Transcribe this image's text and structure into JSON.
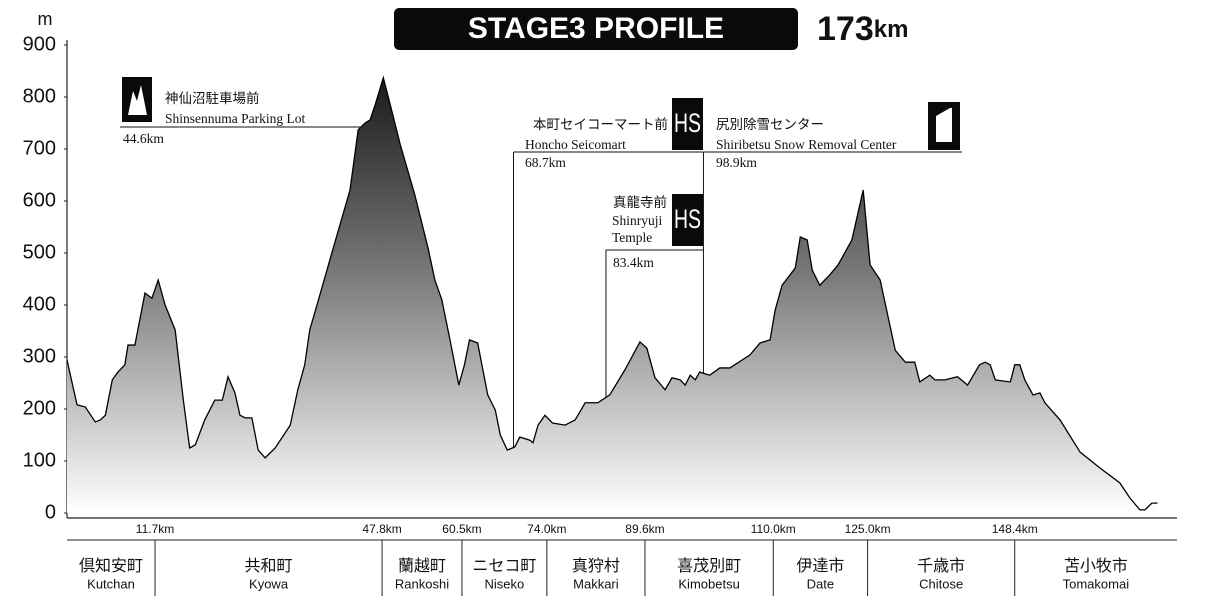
{
  "chart_data": {
    "type": "area",
    "title": "STAGE3 PROFILE",
    "distance_value": "173",
    "distance_unit": "km",
    "y_label": "m",
    "ylim": [
      0,
      900
    ],
    "yticks": [
      0,
      100,
      200,
      300,
      400,
      500,
      600,
      700,
      800,
      900
    ],
    "xlim": [
      -2.3,
      174.2
    ],
    "xticks": [
      {
        "value": 11.7,
        "label": "11.7km"
      },
      {
        "value": 47.8,
        "label": "47.8km"
      },
      {
        "value": 60.5,
        "label": "60.5km"
      },
      {
        "value": 74.0,
        "label": "74.0km"
      },
      {
        "value": 89.6,
        "label": "89.6km"
      },
      {
        "value": 110.0,
        "label": "110.0km"
      },
      {
        "value": 125.0,
        "label": "125.0km"
      },
      {
        "value": 148.4,
        "label": "148.4km"
      }
    ],
    "x": [
      -2.3,
      -0.7,
      0.6,
      2.2,
      3.0,
      3.8,
      4.9,
      5.8,
      6.9,
      7.4,
      8.5,
      10.1,
      11.2,
      12.2,
      13.3,
      14.9,
      16.2,
      17.2,
      18.1,
      19.6,
      21.2,
      22.4,
      23.3,
      24.4,
      25.2,
      26.0,
      27.1,
      28.1,
      29.2,
      30.8,
      33.2,
      34.4,
      35.5,
      36.3,
      37.9,
      39.5,
      41.1,
      42.7,
      44.0,
      45.1,
      45.9,
      46.7,
      48.0,
      49.1,
      50.7,
      53.0,
      55.1,
      56.2,
      57.3,
      58.6,
      60.0,
      60.9,
      61.7,
      63.0,
      64.6,
      65.8,
      66.6,
      67.7,
      68.9,
      69.7,
      71.3,
      71.8,
      72.6,
      73.7,
      74.9,
      76.9,
      78.5,
      80.1,
      82.1,
      84.0,
      86.4,
      88.8,
      89.9,
      91.2,
      92.8,
      93.9,
      95.2,
      96.0,
      96.8,
      97.6,
      98.3,
      99.9,
      101.5,
      103.1,
      106.3,
      107.9,
      109.5,
      110.3,
      111.4,
      113.5,
      114.3,
      115.4,
      116.2,
      117.4,
      119.0,
      120.3,
      122.5,
      124.3,
      125.4,
      127.0,
      129.4,
      131.0,
      132.5,
      133.3,
      134.9,
      135.7,
      137.3,
      139.3,
      140.9,
      142.8,
      143.7,
      144.5,
      145.3,
      147.7,
      148.4,
      149.2,
      150.0,
      151.3,
      152.4,
      153.2,
      155.6,
      158.8,
      161.9,
      165.1,
      166.7,
      168.3,
      169.1,
      170.2,
      171.1
    ],
    "values": [
      294,
      208,
      204,
      175,
      179,
      188,
      256,
      271,
      285,
      323,
      323,
      423,
      413,
      448,
      400,
      352,
      217,
      125,
      131,
      179,
      217,
      217,
      262,
      231,
      188,
      183,
      183,
      121,
      106,
      125,
      169,
      237,
      285,
      352,
      419,
      487,
      554,
      621,
      737,
      750,
      756,
      785,
      837,
      785,
      708,
      612,
      510,
      448,
      410,
      333,
      246,
      285,
      333,
      327,
      227,
      198,
      150,
      121,
      127,
      146,
      140,
      135,
      169,
      188,
      173,
      169,
      179,
      212,
      212,
      227,
      275,
      329,
      317,
      260,
      237,
      260,
      256,
      246,
      265,
      256,
      271,
      265,
      279,
      279,
      304,
      327,
      333,
      390,
      438,
      471,
      531,
      525,
      467,
      438,
      458,
      477,
      525,
      621,
      477,
      448,
      313,
      290,
      290,
      252,
      265,
      256,
      256,
      262,
      246,
      285,
      290,
      285,
      256,
      252,
      285,
      285,
      256,
      227,
      231,
      212,
      179,
      117,
      87,
      58,
      29,
      6,
      6,
      19,
      19
    ],
    "color": "#000000",
    "annotations": [
      {
        "ja": "神仙沼駐車場前",
        "en": "Shinsennuma Parking Lot",
        "km": 44.6,
        "km_label": "44.6km"
      },
      {
        "ja": "本町セイコーマート前",
        "en": "Honcho Seicomart",
        "km": 68.7,
        "km_label": "68.7km",
        "badge": "HS"
      },
      {
        "ja": "真龍寺前",
        "en": "Shinryuji Temple",
        "km": 83.4,
        "km_label": "83.4km",
        "badge": "HS"
      },
      {
        "ja": "尻別除雪センター",
        "en": "Shiribetsu Snow Removal Center",
        "km": 98.9,
        "km_label": "98.9km"
      }
    ],
    "regions": [
      {
        "ja": "倶知安町",
        "en": "Kutchan"
      },
      {
        "ja": "共和町",
        "en": "Kyowa"
      },
      {
        "ja": "蘭越町",
        "en": "Rankoshi"
      },
      {
        "ja": "ニセコ町",
        "en": "Niseko"
      },
      {
        "ja": "真狩村",
        "en": "Makkari"
      },
      {
        "ja": "喜茂別町",
        "en": "Kimobetsu"
      },
      {
        "ja": "伊達市",
        "en": "Date"
      },
      {
        "ja": "千歳市",
        "en": "Chitose"
      },
      {
        "ja": "苫小牧市",
        "en": "Tomakomai"
      }
    ]
  }
}
